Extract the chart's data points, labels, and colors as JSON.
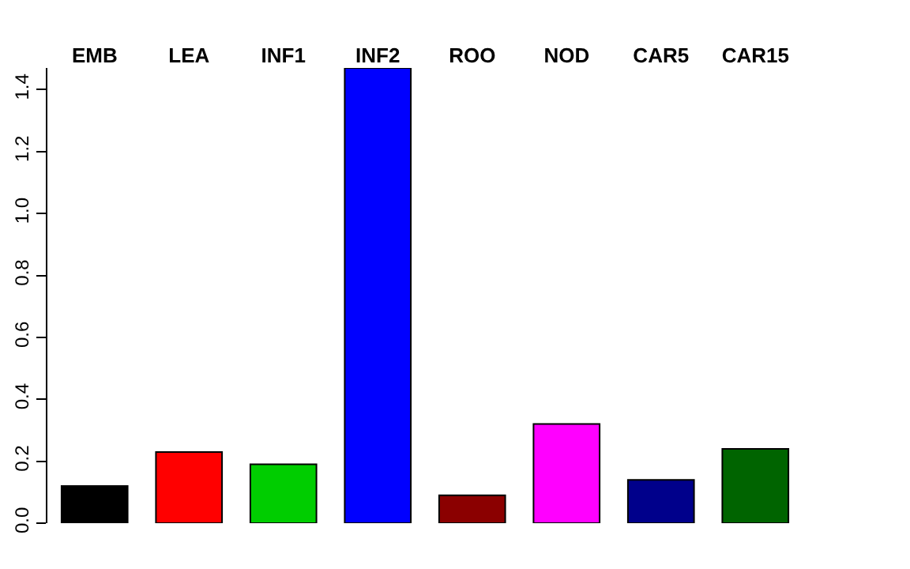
{
  "chart_data": {
    "type": "bar",
    "categories": [
      "EMB",
      "LEA",
      "INF1",
      "INF2",
      "ROO",
      "NOD",
      "CAR5",
      "CAR15"
    ],
    "values": [
      0.12,
      0.23,
      0.19,
      1.47,
      0.09,
      0.32,
      0.14,
      0.24
    ],
    "colors": [
      "#000000",
      "#ff0000",
      "#00cd00",
      "#0000ff",
      "#8b0000",
      "#ff00ff",
      "#00008b",
      "#006400"
    ],
    "ylim": [
      0,
      1.47
    ],
    "yticks": [
      {
        "value": 0,
        "label": "0.0"
      },
      0.2,
      0.4,
      0.6,
      0.8,
      {
        "value": 1,
        "label": "1.0"
      },
      1.2,
      1.4
    ],
    "grid": false
  }
}
